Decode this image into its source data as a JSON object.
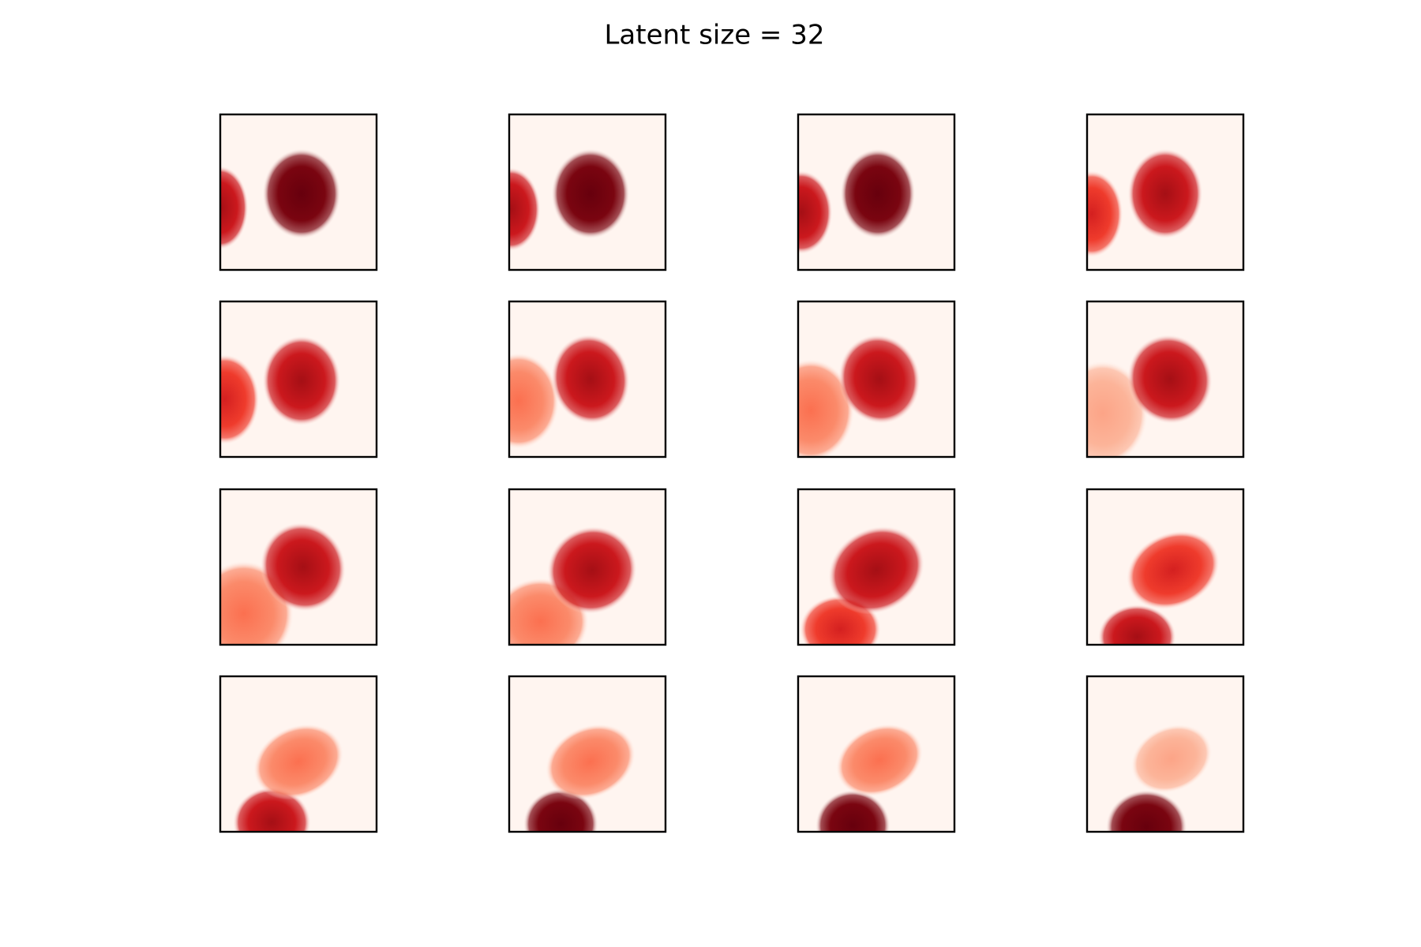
{
  "chart_data": {
    "type": "image",
    "title": "Latent size = 32"
  }
}
